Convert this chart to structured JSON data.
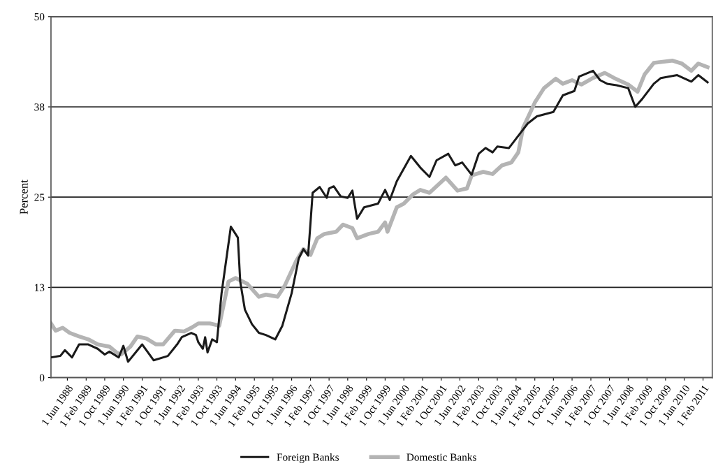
{
  "chart_data": {
    "type": "line",
    "ylabel": "Percent",
    "xlim": [
      "1987-11-01",
      "2011-06-01"
    ],
    "ylim": [
      0,
      50
    ],
    "yticks": [
      0,
      {
        "value": 12.5,
        "label": "13"
      },
      25,
      {
        "value": 37.5,
        "label": "38"
      },
      50
    ],
    "xticks": [
      {
        "value": "1988-06-01",
        "label": "1 Jun 1988"
      },
      {
        "value": "1989-02-01",
        "label": "1 Feb 1989"
      },
      {
        "value": "1989-10-01",
        "label": "1 Oct 1989"
      },
      {
        "value": "1990-06-01",
        "label": "1 Jun 1990"
      },
      {
        "value": "1991-02-01",
        "label": "1 Feb 1991"
      },
      {
        "value": "1991-10-01",
        "label": "1 Oct 1991"
      },
      {
        "value": "1992-06-01",
        "label": "1 Jun 1992"
      },
      {
        "value": "1993-02-01",
        "label": "1 Feb 1993"
      },
      {
        "value": "1993-10-01",
        "label": "1 Oct 1993"
      },
      {
        "value": "1994-06-01",
        "label": "1 Jun 1994"
      },
      {
        "value": "1995-02-01",
        "label": "1 Feb 1995"
      },
      {
        "value": "1995-10-01",
        "label": "1 Oct 1995"
      },
      {
        "value": "1996-06-01",
        "label": "1 Jun 1996"
      },
      {
        "value": "1997-02-01",
        "label": "1 Feb 1997"
      },
      {
        "value": "1997-10-01",
        "label": "1 Oct 1997"
      },
      {
        "value": "1998-06-01",
        "label": "1 Jun 1998"
      },
      {
        "value": "1999-02-01",
        "label": "1 Feb 1999"
      },
      {
        "value": "1999-10-01",
        "label": "1 Oct 1999"
      },
      {
        "value": "2000-06-01",
        "label": "1 Jun 2000"
      },
      {
        "value": "2001-02-01",
        "label": "1 Feb 2001"
      },
      {
        "value": "2001-10-01",
        "label": "1 Oct 2001"
      },
      {
        "value": "2002-06-01",
        "label": "1 Jun 2002"
      },
      {
        "value": "2003-02-01",
        "label": "1 Feb 2003"
      },
      {
        "value": "2003-10-01",
        "label": "1 Oct 2003"
      },
      {
        "value": "2004-06-01",
        "label": "1 Jun 2004"
      },
      {
        "value": "2005-02-01",
        "label": "1 Feb 2005"
      },
      {
        "value": "2005-10-01",
        "label": "1 Oct 2005"
      },
      {
        "value": "2006-06-01",
        "label": "1 Jun 2006"
      },
      {
        "value": "2007-02-01",
        "label": "1 Feb 2007"
      },
      {
        "value": "2007-10-01",
        "label": "1 Oct 2007"
      },
      {
        "value": "2008-06-01",
        "label": "1 Jun 2008"
      },
      {
        "value": "2009-02-01",
        "label": "1 Feb 2009"
      },
      {
        "value": "2009-10-01",
        "label": "1 Oct 2009"
      },
      {
        "value": "2010-06-01",
        "label": "1 Jun 2010"
      },
      {
        "value": "2011-02-01",
        "label": "1 Feb 2011"
      }
    ],
    "grid": "y",
    "legend": "bottom",
    "marker": "none",
    "line_style": "solid",
    "series": [
      {
        "name": "Foreign Banks",
        "color": "#1a1a1a",
        "x": [
          "1987-11",
          "1988-03",
          "1988-05",
          "1988-08",
          "1988-11",
          "1989-03",
          "1989-07",
          "1989-10",
          "1989-12",
          "1990-04",
          "1990-06",
          "1990-08",
          "1991-02",
          "1991-07",
          "1992-01",
          "1992-05",
          "1992-07",
          "1992-11",
          "1993-01",
          "1993-02",
          "1993-04",
          "1993-05",
          "1993-06",
          "1993-08",
          "1993-10",
          "1993-12",
          "1994-04",
          "1994-07",
          "1994-08",
          "1994-10",
          "1995-01",
          "1995-04",
          "1995-07",
          "1995-11",
          "1996-02",
          "1996-06",
          "1996-09",
          "1996-11",
          "1997-01",
          "1997-02",
          "1997-03",
          "1997-06",
          "1997-09",
          "1997-10",
          "1997-12",
          "1998-03",
          "1998-06",
          "1998-08",
          "1998-10",
          "1999-01",
          "1999-07",
          "1999-10",
          "1999-12",
          "2000-03",
          "2000-09",
          "2001-01",
          "2001-05",
          "2001-08",
          "2002-01",
          "2002-04",
          "2002-07",
          "2002-11",
          "2003-02",
          "2003-05",
          "2003-08",
          "2003-10",
          "2004-03",
          "2004-07",
          "2004-11",
          "2005-03",
          "2005-10",
          "2006-02",
          "2006-07",
          "2006-09",
          "2007-03",
          "2007-06",
          "2007-09",
          "2008-01",
          "2008-06",
          "2008-09",
          "2008-12",
          "2009-05",
          "2009-08",
          "2010-03",
          "2010-09",
          "2010-12",
          "2011-04"
        ],
        "values": [
          2.8,
          3.0,
          3.8,
          2.8,
          4.6,
          4.6,
          4.0,
          3.2,
          3.6,
          2.8,
          4.4,
          2.2,
          4.6,
          2.4,
          3.0,
          4.6,
          5.6,
          6.2,
          5.9,
          4.9,
          4.0,
          5.6,
          3.5,
          5.3,
          4.9,
          11.7,
          20.9,
          19.4,
          13.3,
          9.4,
          7.4,
          6.2,
          5.9,
          5.3,
          7.2,
          11.7,
          16.5,
          17.8,
          16.9,
          21.4,
          25.6,
          26.4,
          24.9,
          26.2,
          26.5,
          25.1,
          24.9,
          25.9,
          22.0,
          23.6,
          24.1,
          26.0,
          24.6,
          27.2,
          30.7,
          29.1,
          27.8,
          30.1,
          31.0,
          29.4,
          29.8,
          28.1,
          31.0,
          31.8,
          31.2,
          32.0,
          31.8,
          33.5,
          35.2,
          36.2,
          36.8,
          39.1,
          39.7,
          41.7,
          42.5,
          41.2,
          40.7,
          40.5,
          40.1,
          37.5,
          38.6,
          40.7,
          41.5,
          41.9,
          41.0,
          41.9,
          40.9
        ]
      },
      {
        "name": "Domestic Banks",
        "color": "#b4b4b4",
        "x": [
          "1987-11",
          "1988-01",
          "1988-04",
          "1988-07",
          "1988-11",
          "1989-03",
          "1989-07",
          "1989-12",
          "1990-03",
          "1990-05",
          "1990-09",
          "1990-12",
          "1991-04",
          "1991-08",
          "1991-11",
          "1992-04",
          "1992-08",
          "1992-11",
          "1993-02",
          "1993-07",
          "1993-11",
          "1994-03",
          "1994-06",
          "1994-11",
          "1995-04",
          "1995-07",
          "1995-12",
          "1996-03",
          "1996-08",
          "1996-11",
          "1997-02",
          "1997-05",
          "1997-08",
          "1998-01",
          "1998-04",
          "1998-08",
          "1998-10",
          "1999-03",
          "1999-07",
          "1999-10",
          "1999-11",
          "2000-03",
          "2000-06",
          "2000-10",
          "2001-01",
          "2001-05",
          "2001-12",
          "2002-05",
          "2002-09",
          "2002-11",
          "2003-04",
          "2003-08",
          "2003-12",
          "2004-04",
          "2004-07",
          "2004-09",
          "2005-02",
          "2005-06",
          "2005-11",
          "2006-02",
          "2006-06",
          "2006-10",
          "2007-03",
          "2007-08",
          "2007-12",
          "2008-06",
          "2008-10",
          "2009-01",
          "2009-05",
          "2010-01",
          "2010-05",
          "2010-09",
          "2010-12",
          "2011-04"
        ],
        "values": [
          7.5,
          6.5,
          6.9,
          6.2,
          5.7,
          5.3,
          4.6,
          4.3,
          3.5,
          3.2,
          4.3,
          5.7,
          5.4,
          4.6,
          4.6,
          6.5,
          6.4,
          6.9,
          7.5,
          7.5,
          7.2,
          13.3,
          13.8,
          13.0,
          11.2,
          11.5,
          11.2,
          12.7,
          16.2,
          17.8,
          17.0,
          19.3,
          19.9,
          20.2,
          21.2,
          20.7,
          19.3,
          19.9,
          20.2,
          21.5,
          20.2,
          23.6,
          24.1,
          25.4,
          26.0,
          25.6,
          27.7,
          25.9,
          26.2,
          28.0,
          28.5,
          28.2,
          29.4,
          29.8,
          31.2,
          34.6,
          38.1,
          40.1,
          41.4,
          40.7,
          41.2,
          40.6,
          41.5,
          42.2,
          41.5,
          40.6,
          39.6,
          42.0,
          43.6,
          43.9,
          43.5,
          42.5,
          43.5,
          43.0
        ]
      }
    ]
  }
}
